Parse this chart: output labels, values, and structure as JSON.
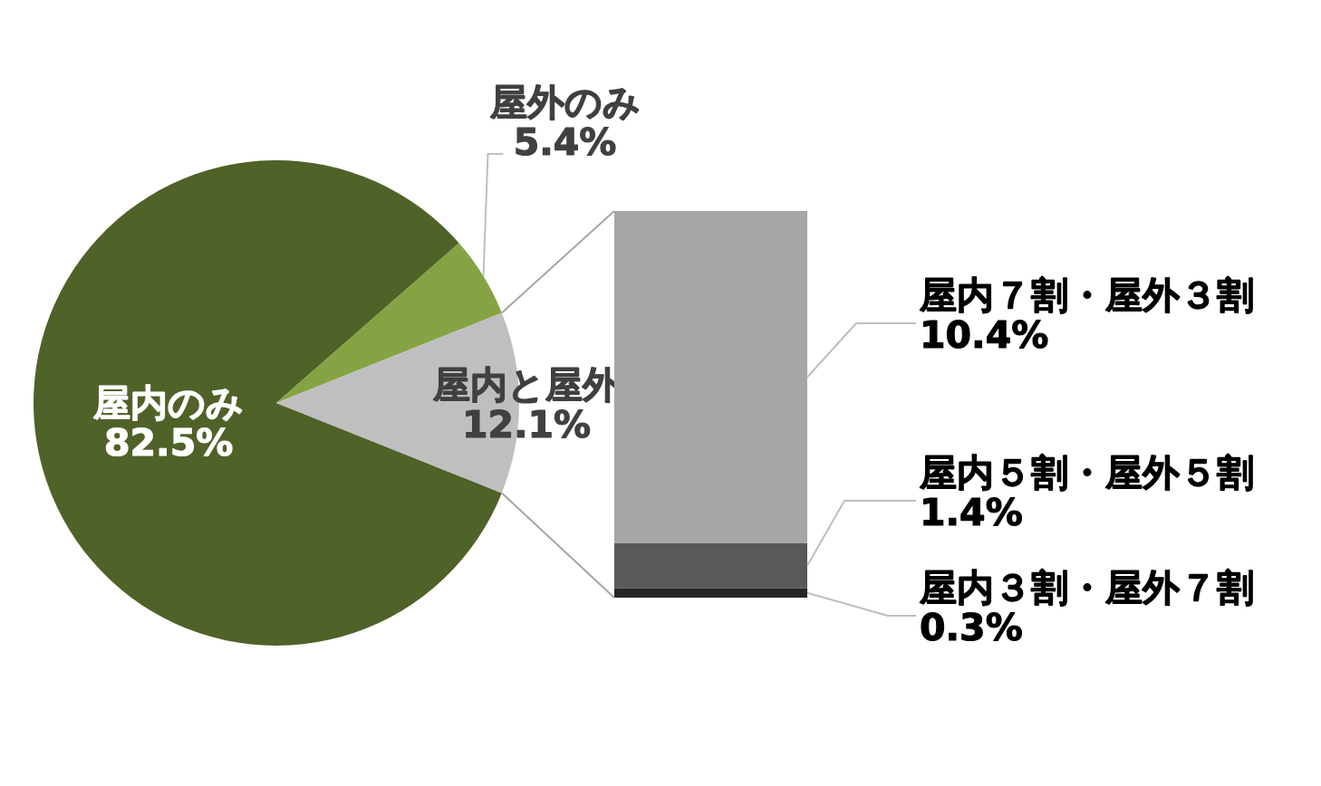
{
  "chart_data": [
    {
      "type": "pie",
      "categories": [
        "屋内のみ",
        "屋外のみ",
        "屋内と屋外"
      ],
      "values": [
        82.5,
        5.4,
        12.1
      ],
      "colors": [
        "#4f6228",
        "#84a444",
        "#bfbfbf"
      ],
      "value_labels": [
        "82.5%",
        "5.4%",
        "12.1%"
      ]
    },
    {
      "type": "bar",
      "stacked": true,
      "tick_labels": false,
      "categories": [
        null
      ],
      "series": [
        {
          "name": "屋内３割・屋外７割",
          "color": "#262626",
          "values": [
            0.3
          ],
          "value_labels": [
            "0.3%"
          ]
        },
        {
          "name": "屋内５割・屋外５割",
          "color": "#595959",
          "values": [
            1.4
          ],
          "value_labels": [
            "1.4%"
          ]
        },
        {
          "name": "屋内７割・屋外３割",
          "color": "#a6a6a6",
          "values": [
            10.4
          ],
          "value_labels": [
            "10.4%"
          ]
        }
      ]
    }
  ]
}
